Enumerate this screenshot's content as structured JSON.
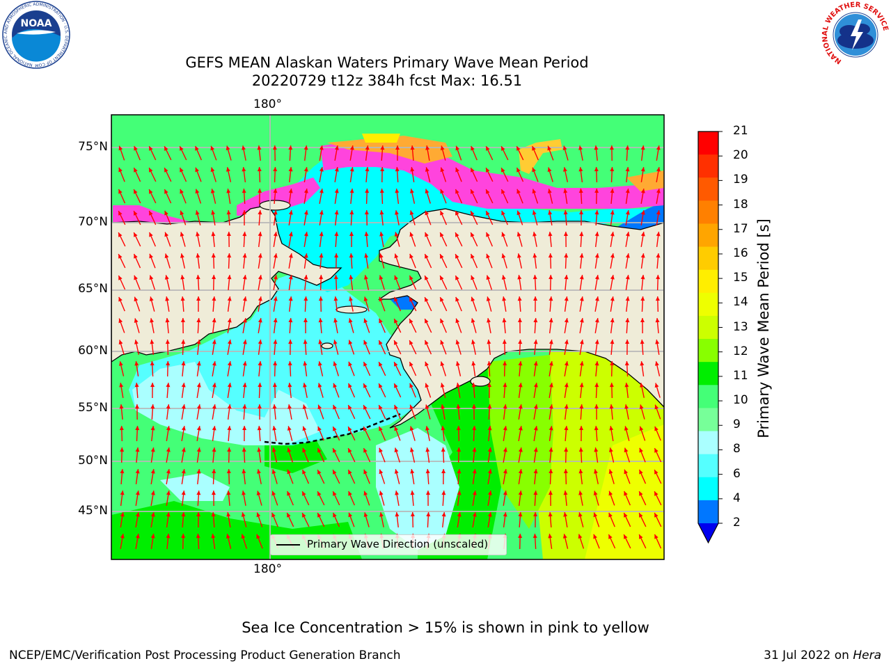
{
  "title_line1": "GEFS MEAN Alaskan Waters Primary Wave Mean Period",
  "title_line2": "20220729 t12z 384h fcst   Max: 16.51",
  "top_lon_label": "180°",
  "bottom_lon_label": "180°",
  "lat_labels": [
    "75°N",
    "70°N",
    "65°N",
    "60°N",
    "55°N",
    "50°N",
    "45°N"
  ],
  "legend_label": "Primary Wave Direction (unscaled)",
  "colorbar": {
    "label": "Primary Wave Mean Period [s]",
    "ticks": [
      "21",
      "20",
      "19",
      "18",
      "17",
      "16",
      "15",
      "14",
      "13",
      "12",
      "11",
      "10",
      "9",
      "8",
      "6",
      "4",
      "2"
    ],
    "colors_top_to_bottom": [
      "#ff0000",
      "#ff3000",
      "#ff5a00",
      "#ff8000",
      "#ffa500",
      "#ffcc00",
      "#ffee00",
      "#eeff00",
      "#ccff00",
      "#88ff00",
      "#00ee00",
      "#44ff77",
      "#77ff99",
      "#aaffff",
      "#55ffff",
      "#00ffff",
      "#0077ff"
    ],
    "extend_color": "#0000ee"
  },
  "land_color": "#efecd8",
  "arrow_color": "#ff0000",
  "ice_note": "Sea Ice Concentration > 15% is shown in pink to yellow",
  "footer_left": "NCEP/EMC/Verification Post Processing Product Generation Branch",
  "footer_right_date": "31 Jul 2022 on",
  "footer_right_machine": "Hera",
  "logo_left": {
    "text": "NOAA",
    "ring_text": "NATIONAL OCEANIC AND ATMOSPHERIC ADMINISTRATION · U.S. DEPARTMENT OF COMMERCE"
  },
  "logo_right": {
    "ring_text": "NATIONAL WEATHER SERVICE"
  }
}
